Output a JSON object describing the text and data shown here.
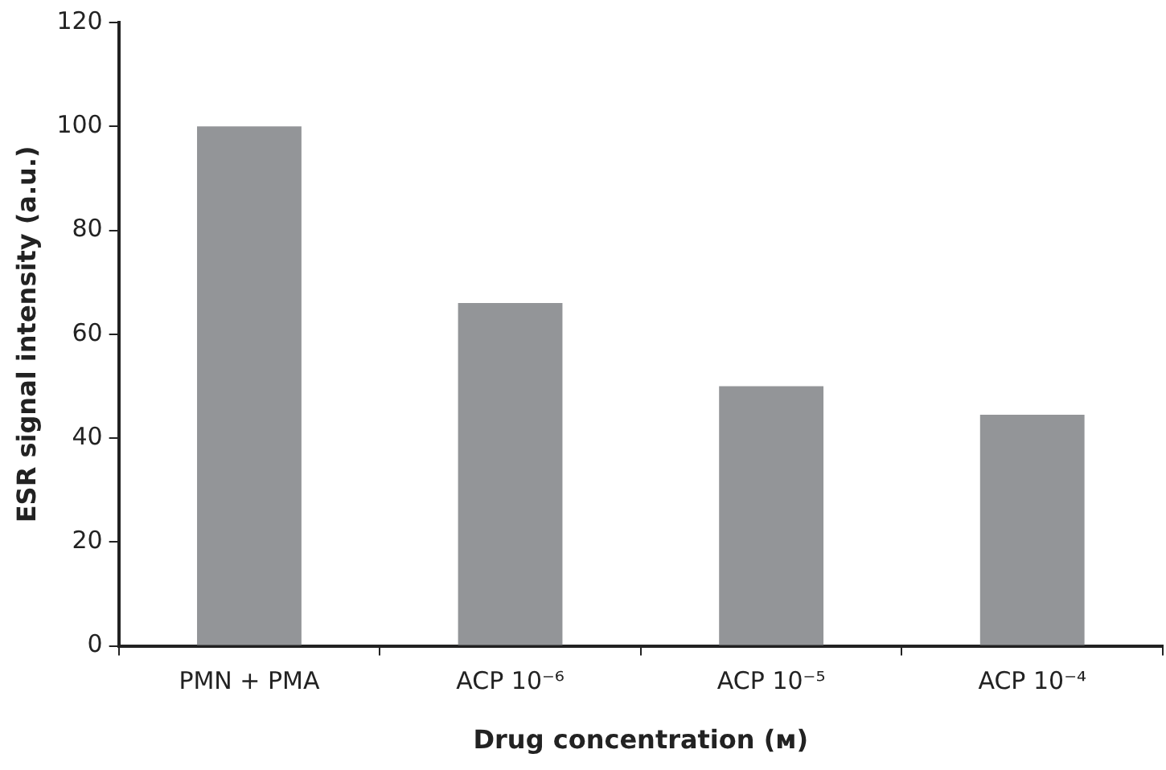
{
  "chart_data": {
    "type": "bar",
    "xlabel": "Drug concentration (ᴍ)",
    "ylabel": "ESR signal intensity (a.u.)",
    "categories": [
      "PMN + PMA",
      "ACP 10⁻⁶",
      "ACP 10⁻⁵",
      "ACP 10⁻⁴"
    ],
    "values": [
      100,
      66,
      50,
      44.5
    ],
    "color": "#939598",
    "ylim": [
      0,
      120
    ],
    "yticks": [
      0,
      20,
      40,
      60,
      80,
      100,
      120
    ],
    "grid": false,
    "legend": false
  }
}
